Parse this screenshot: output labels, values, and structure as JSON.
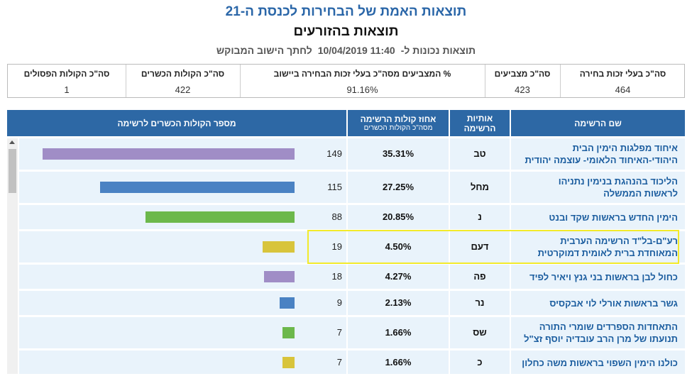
{
  "header": {
    "title": "תוצאות האמת של הבחירות לכנסת ה-21",
    "subtitle": "תוצאות בהזורעים",
    "timestamp_prefix": "תוצאות נכונות ל-",
    "timestamp": "10/04/2019  11:40",
    "timestamp_suffix": "לחתך הישוב המבוקש"
  },
  "summary": {
    "columns": [
      {
        "label": "סה\"כ בעלי זכות בחירה",
        "value": "464"
      },
      {
        "label": "סה\"כ מצביעים",
        "value": "423"
      },
      {
        "label": "% המצביעים מסה\"כ בעלי זכות הבחירה ביישוב",
        "value": "91.16%"
      },
      {
        "label": "סה\"כ הקולות הכשרים",
        "value": "422"
      },
      {
        "label": "סה\"כ הקולות הפסולים",
        "value": "1"
      }
    ]
  },
  "table": {
    "headers": {
      "name": "שם הרשימה",
      "letters": [
        "אותיות",
        "הרשימה"
      ],
      "percent": "אחוז קולות הרשימה",
      "percent_sub": "מסה\"כ הקולות הכשרים",
      "votes": "מספר הקולות הכשרים לרשימה"
    },
    "rows": [
      {
        "name": [
          "איחוד מפלגות הימין הבית",
          "היהודי-האיחוד הלאומי- עוצמה יהודית"
        ],
        "letters": "טב",
        "percent": "35.31%",
        "votes": 149,
        "color": "#a08dc6"
      },
      {
        "name": [
          "הליכוד בהנהגת בנימין נתניהו",
          "לראשות הממשלה"
        ],
        "letters": "מחל",
        "percent": "27.25%",
        "votes": 115,
        "color": "#4a82c3"
      },
      {
        "name": [
          "הימין החדש בראשות שקד ובנט"
        ],
        "letters": "נ",
        "percent": "20.85%",
        "votes": 88,
        "color": "#6cb84b"
      },
      {
        "name": [
          "רע\"ם-בל\"ד הרשימה הערבית",
          "המאוחדת ברית לאומית דמוקרטית"
        ],
        "letters": "דעם",
        "percent": "4.50%",
        "votes": 19,
        "color": "#d8c43b",
        "highlighted": true
      },
      {
        "name": [
          "כחול לבן בראשות בני גנץ ויאיר לפיד"
        ],
        "letters": "פה",
        "percent": "4.27%",
        "votes": 18,
        "color": "#a08dc6"
      },
      {
        "name": [
          "גשר בראשות אורלי לוי אבקסיס"
        ],
        "letters": "נר",
        "percent": "2.13%",
        "votes": 9,
        "color": "#4a82c3"
      },
      {
        "name": [
          "התאחדות הספרדים שומרי התורה",
          "תנועתו של מרן הרב עובדיה יוסף זצ\"ל"
        ],
        "letters": "שס",
        "percent": "1.66%",
        "votes": 7,
        "color": "#6cb84b"
      },
      {
        "name": [
          "כולנו הימין השפוי בראשות משה כחלון"
        ],
        "letters": "כ",
        "percent": "1.66%",
        "votes": 7,
        "color": "#d8c43b"
      }
    ]
  }
}
